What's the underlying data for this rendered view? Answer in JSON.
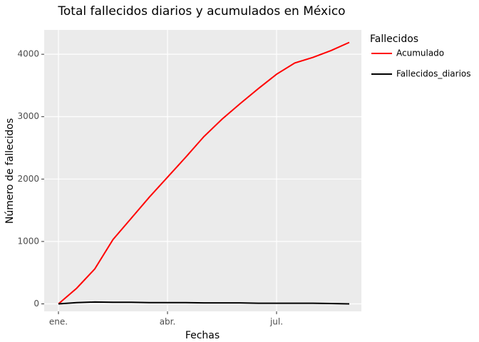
{
  "chart_data": {
    "type": "line",
    "title": "Total fallecidos diarios y acumulados en México",
    "x_label": "Fechas",
    "y_label": "Número de fallecidos",
    "legend_title": "Fallecidos",
    "legend_position": "right",
    "grid": true,
    "categories": [
      "ene.",
      null,
      null,
      null,
      null,
      null,
      "abr.",
      null,
      null,
      null,
      null,
      null,
      "jul.",
      null,
      null,
      null,
      null
    ],
    "series": [
      {
        "name": "Acumulado",
        "color": "#ff0000",
        "values": [
          0,
          250,
          560,
          1030,
          1370,
          1710,
          2030,
          2350,
          2680,
          2960,
          3210,
          3450,
          3680,
          3860,
          3950,
          4060,
          4190
        ]
      },
      {
        "name": "Fallecidos_diarios",
        "color": "#000000",
        "values": [
          0,
          20,
          30,
          25,
          25,
          20,
          20,
          20,
          15,
          15,
          15,
          10,
          10,
          10,
          10,
          5,
          0
        ]
      }
    ],
    "ylim": [
      -120,
      4390
    ],
    "yticks": [
      0,
      1000,
      2000,
      3000,
      4000
    ]
  }
}
